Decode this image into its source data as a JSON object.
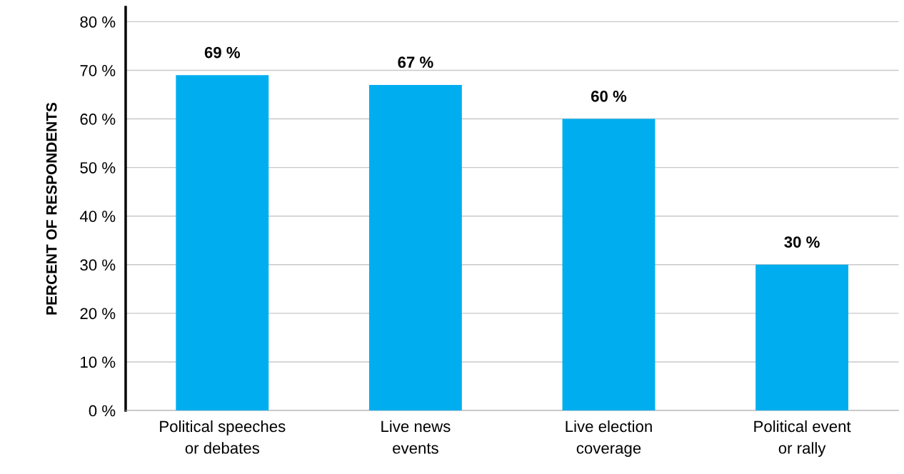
{
  "chart_data": {
    "type": "bar",
    "ylabel": "PERCENT OF RESPONDENTS",
    "categories": [
      "Political speeches\nor debates",
      "Live news\nevents",
      "Live election\ncoverage",
      "Political event\nor rally"
    ],
    "values": [
      69,
      67,
      60,
      30
    ],
    "value_labels": [
      "69 %",
      "67 %",
      "60 %",
      "30 %"
    ],
    "color": "#00aeef",
    "ylim": [
      0,
      83
    ],
    "yticks": [
      {
        "value": 0,
        "label": "0 %"
      },
      {
        "value": 10,
        "label": "10 %"
      },
      {
        "value": 20,
        "label": "20 %"
      },
      {
        "value": 30,
        "label": "30 %"
      },
      {
        "value": 40,
        "label": "40 %"
      },
      {
        "value": 50,
        "label": "50 %"
      },
      {
        "value": 60,
        "label": "60 %"
      },
      {
        "value": 70,
        "label": "70 %"
      },
      {
        "value": 80,
        "label": "80 %"
      }
    ],
    "grid": "y",
    "legend": false
  }
}
